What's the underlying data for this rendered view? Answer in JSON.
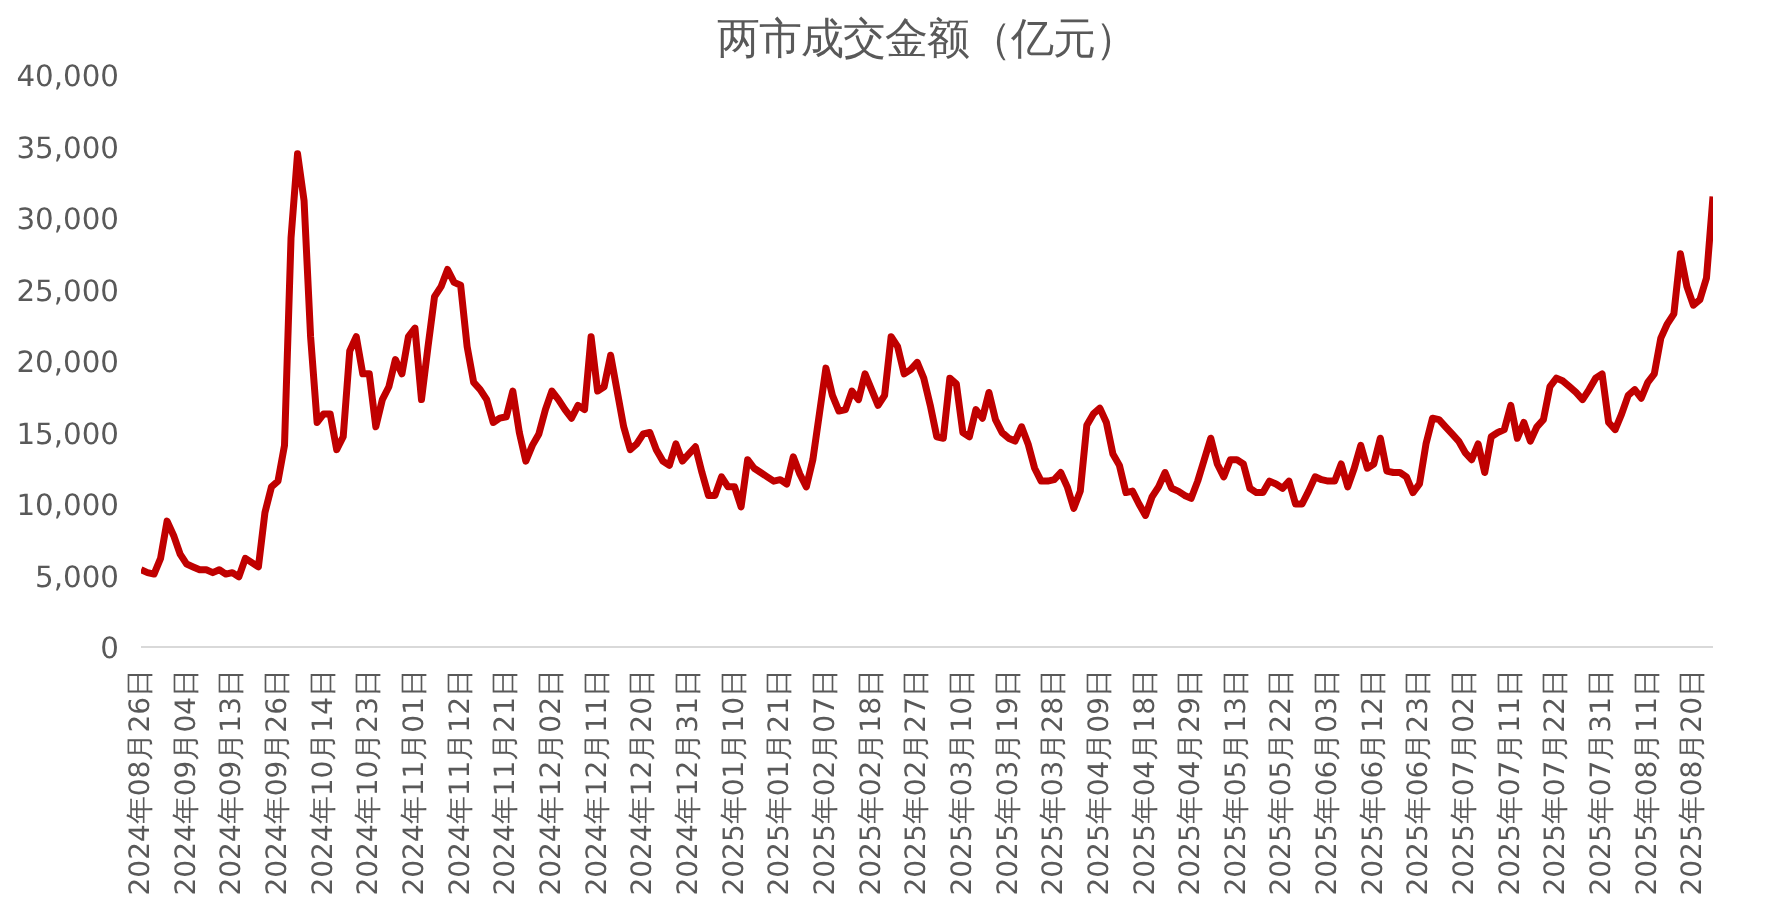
{
  "chart_data": {
    "type": "line",
    "title": "两市成交金额（亿元）",
    "categories": [
      "2024年08月26日",
      null,
      null,
      null,
      null,
      null,
      null,
      "2024年09月04日",
      null,
      null,
      null,
      null,
      null,
      null,
      "2024年09月13日",
      null,
      null,
      null,
      null,
      null,
      null,
      "2024年09月26日",
      null,
      null,
      null,
      null,
      null,
      null,
      "2024年10月14日",
      null,
      null,
      null,
      null,
      null,
      null,
      "2024年10月23日",
      null,
      null,
      null,
      null,
      null,
      null,
      "2024年11月01日",
      null,
      null,
      null,
      null,
      null,
      null,
      "2024年11月12日",
      null,
      null,
      null,
      null,
      null,
      null,
      "2024年11月21日",
      null,
      null,
      null,
      null,
      null,
      null,
      "2024年12月02日",
      null,
      null,
      null,
      null,
      null,
      null,
      "2024年12月11日",
      null,
      null,
      null,
      null,
      null,
      null,
      "2024年12月20日",
      null,
      null,
      null,
      null,
      null,
      null,
      "2024年12月31日",
      null,
      null,
      null,
      null,
      null,
      null,
      "2025年01月10日",
      null,
      null,
      null,
      null,
      null,
      null,
      "2025年01月21日",
      null,
      null,
      null,
      null,
      null,
      null,
      "2025年02月07日",
      null,
      null,
      null,
      null,
      null,
      null,
      "2025年02月18日",
      null,
      null,
      null,
      null,
      null,
      null,
      "2025年02月27日",
      null,
      null,
      null,
      null,
      null,
      null,
      "2025年03月10日",
      null,
      null,
      null,
      null,
      null,
      null,
      "2025年03月19日",
      null,
      null,
      null,
      null,
      null,
      null,
      "2025年03月28日",
      null,
      null,
      null,
      null,
      null,
      null,
      "2025年04月09日",
      null,
      null,
      null,
      null,
      null,
      null,
      "2025年04月18日",
      null,
      null,
      null,
      null,
      null,
      null,
      "2025年04月29日",
      null,
      null,
      null,
      null,
      null,
      null,
      "2025年05月13日",
      null,
      null,
      null,
      null,
      null,
      null,
      "2025年05月22日",
      null,
      null,
      null,
      null,
      null,
      null,
      "2025年06月03日",
      null,
      null,
      null,
      null,
      null,
      null,
      "2025年06月12日",
      null,
      null,
      null,
      null,
      null,
      null,
      "2025年06月23日",
      null,
      null,
      null,
      null,
      null,
      null,
      "2025年07月02日",
      null,
      null,
      null,
      null,
      null,
      null,
      "2025年07月11日",
      null,
      null,
      null,
      null,
      null,
      null,
      "2025年07月22日",
      null,
      null,
      null,
      null,
      null,
      null,
      "2025年07月31日",
      null,
      null,
      null,
      null,
      null,
      null,
      "2025年08月11日",
      null,
      null,
      null,
      null,
      null,
      null,
      "2025年08月20日",
      null,
      null,
      null
    ],
    "series": [
      {
        "color": "#c00000",
        "values": [
          5400,
          5200,
          5100,
          6200,
          8800,
          7800,
          6500,
          5800,
          5600,
          5400,
          5400,
          5200,
          5400,
          5100,
          5200,
          4900,
          6200,
          5900,
          5600,
          9400,
          11200,
          11600,
          14100,
          28600,
          34500,
          31200,
          21700,
          15700,
          16300,
          16300,
          13800,
          14700,
          20700,
          21700,
          19100,
          19100,
          15400,
          17300,
          18200,
          20100,
          19100,
          21700,
          22300,
          17300,
          21000,
          24500,
          25200,
          26400,
          25500,
          25300,
          21000,
          18500,
          18000,
          17300,
          15700,
          16000,
          16100,
          17900,
          15000,
          13000,
          14100,
          14900,
          16600,
          17900,
          17300,
          16600,
          16000,
          16900,
          16600,
          21700,
          17900,
          18200,
          20400,
          17900,
          15400,
          13800,
          14200,
          14900,
          15000,
          13800,
          13000,
          12700,
          14200,
          13000,
          13500,
          14000,
          12200,
          10600,
          10600,
          11900,
          11200,
          11200,
          9800,
          13100,
          12500,
          12200,
          11900,
          11600,
          11700,
          11400,
          13300,
          12100,
          11200,
          13100,
          16300,
          19500,
          17600,
          16500,
          16600,
          17900,
          17300,
          19100,
          18000,
          16900,
          17600,
          21700,
          21000,
          19100,
          19400,
          19900,
          18800,
          16900,
          14700,
          14600,
          18800,
          18400,
          15000,
          14700,
          16600,
          16000,
          17800,
          15900,
          15000,
          14600,
          14400,
          15400,
          14200,
          12500,
          11600,
          11600,
          11700,
          12200,
          11200,
          9700,
          10900,
          15500,
          16300,
          16700,
          15700,
          13500,
          12700,
          10800,
          10900,
          10000,
          9200,
          10500,
          11200,
          12200,
          11100,
          10900,
          10600,
          10400,
          11600,
          13100,
          14600,
          12800,
          11900,
          13100,
          13100,
          12800,
          11100,
          10800,
          10800,
          11600,
          11400,
          11100,
          11600,
          10000,
          10000,
          10900,
          11900,
          11700,
          11600,
          11600,
          12800,
          11200,
          12500,
          14100,
          12500,
          12800,
          14600,
          12300,
          12200,
          12200,
          11900,
          10800,
          11400,
          14200,
          16000,
          15900,
          15400,
          14900,
          14400,
          13600,
          13100,
          14200,
          12200,
          14700,
          15000,
          15200,
          16900,
          14600,
          15700,
          14400,
          15400,
          15900,
          18200,
          18800,
          18600,
          18200,
          17800,
          17300,
          18000,
          18800,
          19100,
          15700,
          15200,
          16300,
          17600,
          18000,
          17400,
          18500,
          19100,
          21600,
          22600,
          23300,
          27500,
          25200,
          23900,
          24300,
          25800,
          31500
        ]
      }
    ],
    "ylim": [
      0,
      40000
    ],
    "yticks": [
      0,
      {
        "value": 5000,
        "label": "5,000"
      },
      {
        "value": 10000,
        "label": "10,000"
      },
      {
        "value": 15000,
        "label": "15,000"
      },
      {
        "value": 20000,
        "label": "20,000"
      },
      {
        "value": 25000,
        "label": "25,000"
      },
      {
        "value": 30000,
        "label": "30,000"
      },
      {
        "value": 35000,
        "label": "35,000"
      },
      {
        "value": 40000,
        "label": "40,000"
      }
    ],
    "grid": false,
    "marker": "none",
    "line_style": "solid"
  }
}
